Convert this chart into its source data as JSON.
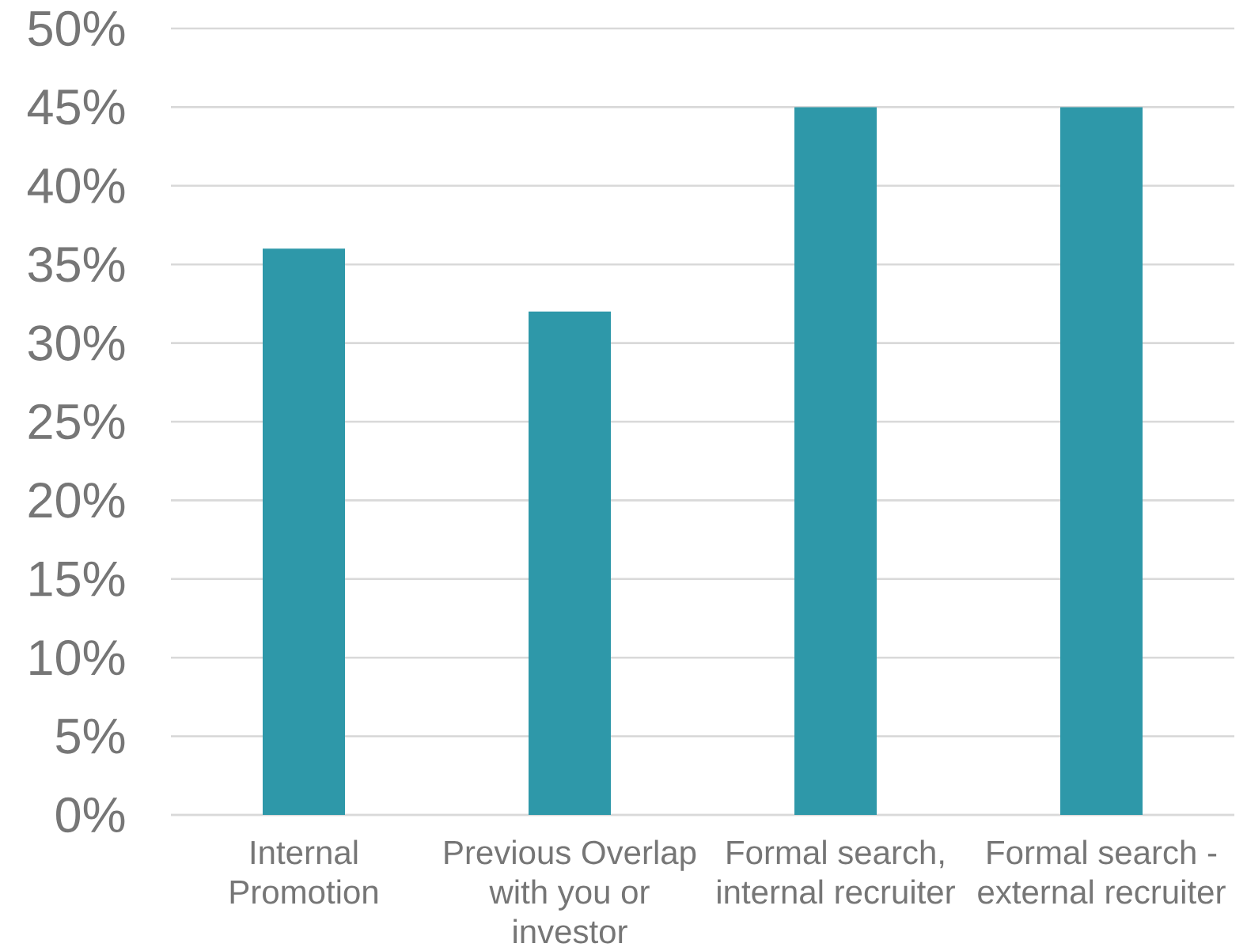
{
  "chart_data": {
    "type": "bar",
    "categories": [
      "Internal Promotion",
      "Previous Overlap with you or investor",
      "Formal search, internal recruiter",
      "Formal search - external recruiter"
    ],
    "values": [
      36,
      32,
      45,
      45
    ],
    "color": "#2e98a9",
    "ylim": [
      0,
      50
    ],
    "yticks": [
      {
        "value": 0,
        "label": "0%"
      },
      {
        "value": 5,
        "label": "5%"
      },
      {
        "value": 10,
        "label": "10%"
      },
      {
        "value": 15,
        "label": "15%"
      },
      {
        "value": 20,
        "label": "20%"
      },
      {
        "value": 25,
        "label": "25%"
      },
      {
        "value": 30,
        "label": "30%"
      },
      {
        "value": 35,
        "label": "35%"
      },
      {
        "value": 40,
        "label": "40%"
      },
      {
        "value": 45,
        "label": "45%"
      },
      {
        "value": 50,
        "label": "50%"
      }
    ],
    "grid": "y"
  }
}
